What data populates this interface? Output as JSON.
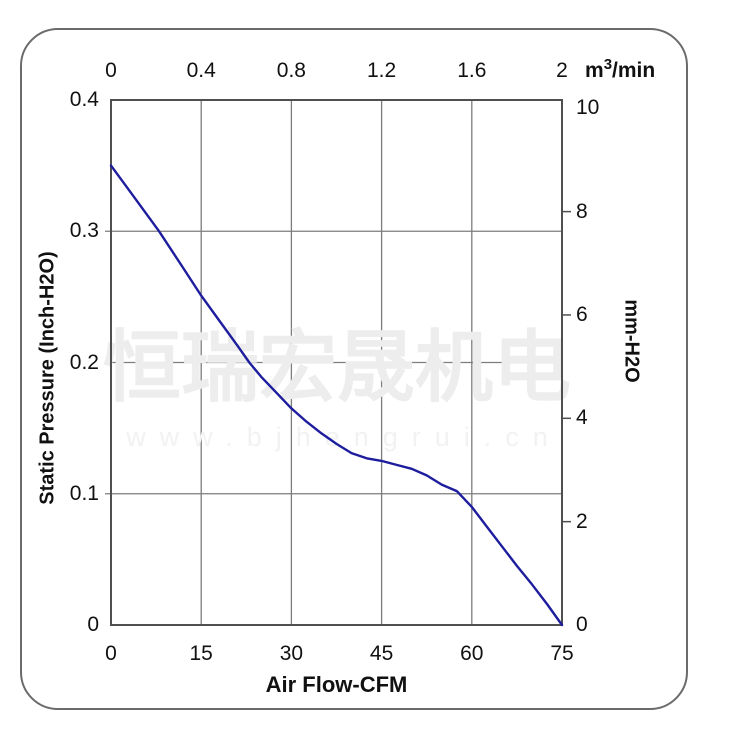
{
  "watermark": {
    "cjk": "恒瑞宏晟机电",
    "url": "www.bjhengrui.cn"
  },
  "colors": {
    "curve": "#1d1d9e",
    "grid": "#7d7d7d",
    "plot_border": "#4f4f4f",
    "card_border": "#6b6b6b",
    "watermark_cjk": "#ededed",
    "watermark_url": "#f2f2f2",
    "text": "#111111"
  },
  "chart_data": {
    "type": "line",
    "legend_position": "none",
    "x_axis_bottom": {
      "label": "Air Flow-CFM",
      "range": [
        0,
        75
      ],
      "ticks": [
        0,
        15,
        30,
        45,
        60,
        75
      ]
    },
    "x_axis_top": {
      "label_base": "m",
      "label_sup": "3",
      "label_rest": "/min",
      "range": [
        0,
        2
      ],
      "ticks": [
        0,
        0.4,
        0.8,
        1.2,
        1.6,
        2
      ]
    },
    "y_axis_left": {
      "label": "Static Pressure (Inch-H2O)",
      "range": [
        0,
        0.4
      ],
      "ticks": [
        0.4,
        0.3,
        0.2,
        0.1,
        0
      ]
    },
    "y_axis_right": {
      "label": "mm-H2O",
      "ticks": [
        10,
        8,
        6,
        4,
        2,
        0
      ],
      "tick_marks": [
        8,
        6,
        4,
        2
      ],
      "inch_per_mm": 0.0393701
    },
    "grid": {
      "vertical_at_cfm": [
        15,
        30,
        45,
        60
      ],
      "horizontal_at_inch": [
        0.1,
        0.2,
        0.3
      ]
    },
    "series": [
      {
        "name": "static-pressure-vs-airflow",
        "points_cfm_inch": [
          [
            0,
            0.35
          ],
          [
            4,
            0.325
          ],
          [
            8,
            0.3
          ],
          [
            12,
            0.272
          ],
          [
            15,
            0.251
          ],
          [
            18,
            0.232
          ],
          [
            21,
            0.213
          ],
          [
            23,
            0.2
          ],
          [
            25,
            0.189
          ],
          [
            27.5,
            0.177
          ],
          [
            30,
            0.165
          ],
          [
            32.5,
            0.155
          ],
          [
            35,
            0.146
          ],
          [
            37.5,
            0.138
          ],
          [
            40,
            0.131
          ],
          [
            42.5,
            0.127
          ],
          [
            45,
            0.125
          ],
          [
            47.5,
            0.122
          ],
          [
            50,
            0.119
          ],
          [
            52.5,
            0.114
          ],
          [
            55,
            0.107
          ],
          [
            57.5,
            0.102
          ],
          [
            60,
            0.09
          ],
          [
            62.5,
            0.075
          ],
          [
            65,
            0.06
          ],
          [
            67.5,
            0.045
          ],
          [
            70,
            0.031
          ],
          [
            72.5,
            0.016
          ],
          [
            75,
            0
          ]
        ]
      }
    ]
  }
}
